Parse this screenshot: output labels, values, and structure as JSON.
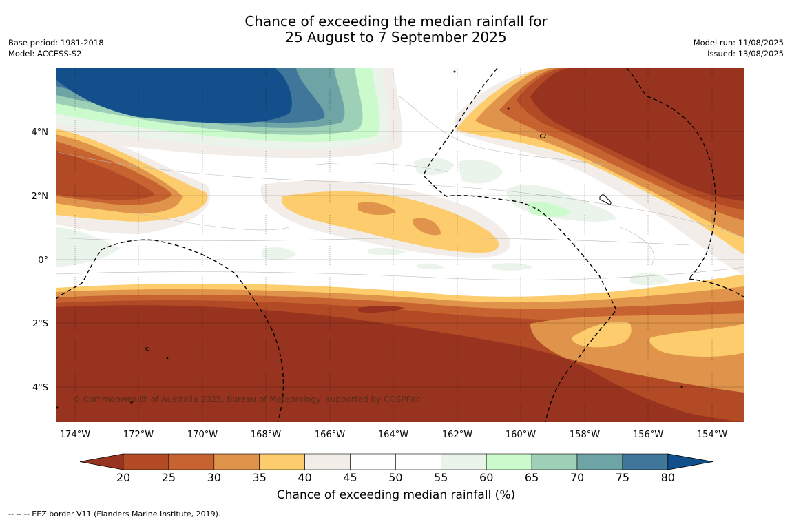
{
  "title": {
    "line1": "Chance of exceeding the median rainfall for",
    "line2": "25 August to 7 September 2025"
  },
  "meta_left": {
    "base_period": "Base period: 1981-2018",
    "model": "Model: ACCESS-S2"
  },
  "meta_right": {
    "model_run": "Model run: 11/08/2025",
    "issued": "Issued: 13/08/2025"
  },
  "map": {
    "lat_labels": [
      "4°N",
      "2°N",
      "0°",
      "2°S",
      "4°S"
    ],
    "lon_labels": [
      "174°W",
      "172°W",
      "170°W",
      "168°W",
      "166°W",
      "164°W",
      "162°W",
      "160°W",
      "158°W",
      "156°W",
      "154°W"
    ],
    "copyright": "© Commonwealth of Australia 2025, Bureau of Meteorology, supported by COSPPac"
  },
  "colorbar": {
    "ticks": [
      "20",
      "25",
      "30",
      "35",
      "40",
      "45",
      "50",
      "55",
      "60",
      "65",
      "70",
      "75",
      "80"
    ],
    "colors": [
      "#98331f",
      "#b14a25",
      "#c76330",
      "#e0934a",
      "#fdcc6c",
      "#f2ede8",
      "#ffffff",
      "#ffffff",
      "#ebf4ea",
      "#cbfbcc",
      "#9dd0b6",
      "#6ea4a6",
      "#3f7699",
      "#134f8b"
    ],
    "title": "Chance of exceeding median rainfall (%)"
  },
  "footnote": "--  --  -- EEZ border V11 (Flanders Marine Institute, 2019)."
}
